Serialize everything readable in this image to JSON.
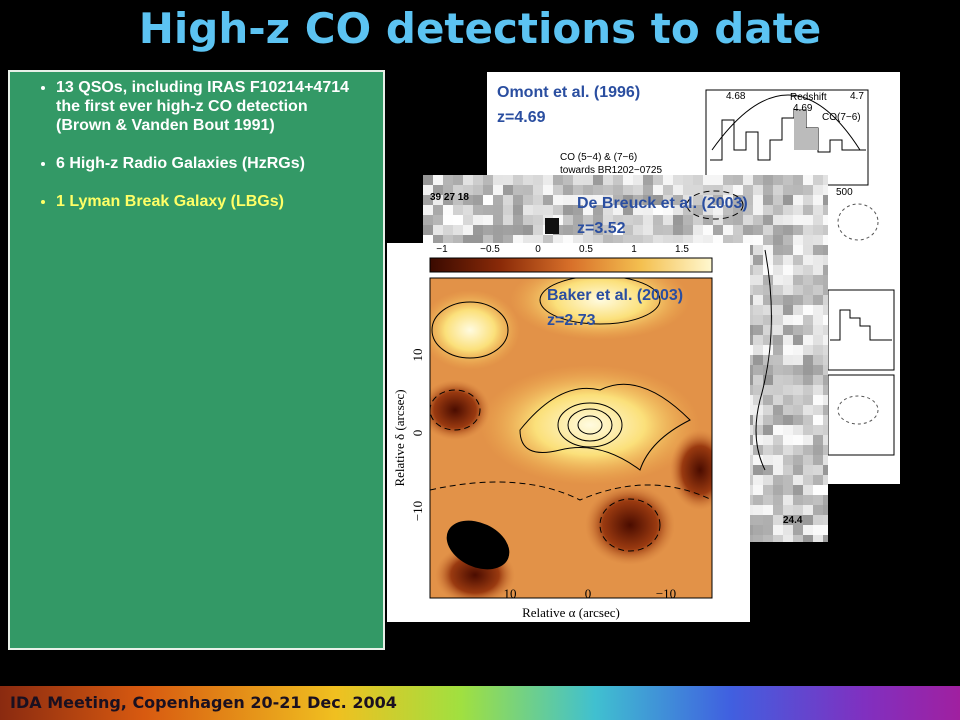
{
  "title": "High-z CO detections to date",
  "bullets": [
    "13 QSOs, including IRAS F10214+4714 the first ever high-z CO detection (Brown & Vanden Bout 1991)",
    "6 High-z Radio Galaxies (HzRGs)",
    "1 Lyman Break Galaxy (LBGs)"
  ],
  "figures": [
    {
      "label": [
        "Omont et al. (1996)",
        "z=4.69"
      ],
      "texts": [
        "CO (5−4) & (7−6)",
        "towards BR1202−0725",
        "Redshift",
        "4.68",
        "4.69",
        "4.7",
        "CO(7−6)",
        "500"
      ]
    },
    {
      "label": [
        "De Breuck et al. (2003)",
        "z=3.52"
      ],
      "texts": [
        "39 27 18",
        "24.4"
      ]
    },
    {
      "label": [
        "Baker et al. (2003)",
        "z=2.73"
      ],
      "colorbar_ticks": [
        "−1",
        "−0.5",
        "0",
        "0.5",
        "1",
        "1.5"
      ],
      "y_ticks": [
        "10",
        "0",
        "−10"
      ],
      "x_ticks": [
        "10",
        "0",
        "−10"
      ],
      "y_label": "Relative δ (arcsec)",
      "x_label": "Relative α (arcsec)"
    }
  ],
  "footer": "IDA Meeting, Copenhagen 20-21 Dec. 2004"
}
